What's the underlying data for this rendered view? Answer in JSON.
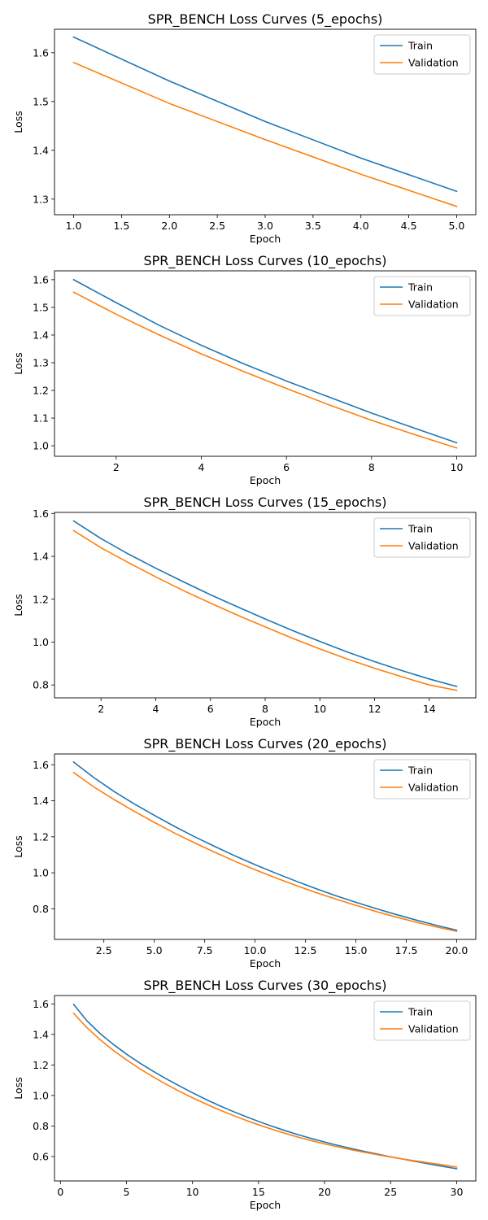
{
  "colors": {
    "train": "#1f77b4",
    "validation": "#ff7f0e"
  },
  "chart_data": [
    {
      "type": "line",
      "title": "SPR_BENCH Loss Curves (5_epochs)",
      "xlabel": "Epoch",
      "ylabel": "Loss",
      "xlim": [
        0.8,
        5.2
      ],
      "ylim": [
        1.268,
        1.648
      ],
      "xticks": [
        1.0,
        1.5,
        2.0,
        2.5,
        3.0,
        3.5,
        4.0,
        4.5,
        5.0
      ],
      "xtick_labels": [
        "1.0",
        "1.5",
        "2.0",
        "2.5",
        "3.0",
        "3.5",
        "4.0",
        "4.5",
        "5.0"
      ],
      "yticks": [
        1.3,
        1.4,
        1.5,
        1.6
      ],
      "ytick_labels": [
        "1.3",
        "1.4",
        "1.5",
        "1.6"
      ],
      "legend": "top-right",
      "x": [
        1,
        2,
        3,
        4,
        5
      ],
      "series": [
        {
          "name": "Train",
          "values": [
            1.632,
            1.542,
            1.459,
            1.384,
            1.316
          ]
        },
        {
          "name": "Validation",
          "values": [
            1.58,
            1.496,
            1.422,
            1.351,
            1.285
          ]
        }
      ]
    },
    {
      "type": "line",
      "title": "SPR_BENCH Loss Curves (10_epochs)",
      "xlabel": "Epoch",
      "ylabel": "Loss",
      "xlim": [
        0.55,
        10.45
      ],
      "ylim": [
        0.962,
        1.632
      ],
      "xticks": [
        2,
        4,
        6,
        8,
        10
      ],
      "xtick_labels": [
        "2",
        "4",
        "6",
        "8",
        "10"
      ],
      "yticks": [
        1.0,
        1.1,
        1.2,
        1.3,
        1.4,
        1.5,
        1.6
      ],
      "ytick_labels": [
        "1.0",
        "1.1",
        "1.2",
        "1.3",
        "1.4",
        "1.5",
        "1.6"
      ],
      "legend": "top-right",
      "x": [
        1,
        2,
        3,
        4,
        5,
        6,
        7,
        8,
        9,
        10
      ],
      "series": [
        {
          "name": "Train",
          "values": [
            1.6,
            1.517,
            1.436,
            1.363,
            1.296,
            1.234,
            1.176,
            1.118,
            1.064,
            1.011
          ]
        },
        {
          "name": "Validation",
          "values": [
            1.555,
            1.475,
            1.401,
            1.332,
            1.268,
            1.207,
            1.148,
            1.092,
            1.041,
            0.992
          ]
        }
      ]
    },
    {
      "type": "line",
      "title": "SPR_BENCH Loss Curves (15_epochs)",
      "xlabel": "Epoch",
      "ylabel": "Loss",
      "xlim": [
        0.3,
        15.7
      ],
      "ylim": [
        0.74,
        1.605
      ],
      "xticks": [
        2,
        4,
        6,
        8,
        10,
        12,
        14
      ],
      "xtick_labels": [
        "2",
        "4",
        "6",
        "8",
        "10",
        "12",
        "14"
      ],
      "yticks": [
        0.8,
        1.0,
        1.2,
        1.4,
        1.6
      ],
      "ytick_labels": [
        "0.8",
        "1.0",
        "1.2",
        "1.4",
        "1.6"
      ],
      "legend": "top-right",
      "x": [
        1,
        2,
        3,
        4,
        5,
        6,
        7,
        8,
        9,
        10,
        11,
        12,
        13,
        14,
        15
      ],
      "series": [
        {
          "name": "Train",
          "values": [
            1.565,
            1.483,
            1.411,
            1.345,
            1.282,
            1.221,
            1.164,
            1.108,
            1.054,
            1.003,
            0.954,
            0.909,
            0.867,
            0.828,
            0.793
          ]
        },
        {
          "name": "Validation",
          "values": [
            1.52,
            1.44,
            1.371,
            1.304,
            1.241,
            1.182,
            1.125,
            1.071,
            1.018,
            0.968,
            0.921,
            0.878,
            0.838,
            0.8,
            0.775
          ]
        }
      ]
    },
    {
      "type": "line",
      "title": "SPR_BENCH Loss Curves (20_epochs)",
      "xlabel": "Epoch",
      "ylabel": "Loss",
      "xlim": [
        0.05,
        20.95
      ],
      "ylim": [
        0.63,
        1.66
      ],
      "xticks": [
        2.5,
        5.0,
        7.5,
        10.0,
        12.5,
        15.0,
        17.5,
        20.0
      ],
      "xtick_labels": [
        "2.5",
        "5.0",
        "7.5",
        "10.0",
        "12.5",
        "15.0",
        "17.5",
        "20.0"
      ],
      "yticks": [
        0.8,
        1.0,
        1.2,
        1.4,
        1.6
      ],
      "ytick_labels": [
        "0.8",
        "1.0",
        "1.2",
        "1.4",
        "1.6"
      ],
      "legend": "top-right",
      "x": [
        1,
        2,
        3,
        4,
        5,
        6,
        7,
        8,
        9,
        10,
        11,
        12,
        13,
        14,
        15,
        16,
        17,
        18,
        19,
        20
      ],
      "series": [
        {
          "name": "Train",
          "values": [
            1.615,
            1.529,
            1.452,
            1.383,
            1.319,
            1.258,
            1.2,
            1.146,
            1.094,
            1.045,
            0.999,
            0.955,
            0.913,
            0.873,
            0.836,
            0.801,
            0.768,
            0.737,
            0.708,
            0.681
          ]
        },
        {
          "name": "Validation",
          "values": [
            1.557,
            1.477,
            1.407,
            1.342,
            1.28,
            1.221,
            1.166,
            1.114,
            1.064,
            1.017,
            0.973,
            0.931,
            0.891,
            0.854,
            0.819,
            0.785,
            0.754,
            0.725,
            0.699,
            0.675
          ]
        }
      ]
    },
    {
      "type": "line",
      "title": "SPR_BENCH Loss Curves (30_epochs)",
      "xlabel": "Epoch",
      "ylabel": "Loss",
      "xlim": [
        -0.45,
        31.45
      ],
      "ylim": [
        0.44,
        1.655
      ],
      "xticks": [
        0,
        5,
        10,
        15,
        20,
        25,
        30
      ],
      "xtick_labels": [
        "0",
        "5",
        "10",
        "15",
        "20",
        "25",
        "30"
      ],
      "yticks": [
        0.6,
        0.8,
        1.0,
        1.2,
        1.4,
        1.6
      ],
      "ytick_labels": [
        "0.6",
        "0.8",
        "1.0",
        "1.2",
        "1.4",
        "1.6"
      ],
      "legend": "top-right",
      "x": [
        1,
        2,
        3,
        4,
        5,
        6,
        7,
        8,
        9,
        10,
        11,
        12,
        13,
        14,
        15,
        16,
        17,
        18,
        19,
        20,
        21,
        22,
        23,
        24,
        25,
        26,
        27,
        28,
        29,
        30
      ],
      "series": [
        {
          "name": "Train",
          "values": [
            1.597,
            1.49,
            1.406,
            1.335,
            1.271,
            1.213,
            1.16,
            1.11,
            1.063,
            1.018,
            0.975,
            0.935,
            0.898,
            0.863,
            0.83,
            0.799,
            0.77,
            0.743,
            0.718,
            0.695,
            0.673,
            0.653,
            0.634,
            0.616,
            0.598,
            0.582,
            0.566,
            0.55,
            0.535,
            0.52
          ]
        },
        {
          "name": "Validation",
          "values": [
            1.538,
            1.445,
            1.366,
            1.296,
            1.233,
            1.176,
            1.123,
            1.074,
            1.028,
            0.985,
            0.945,
            0.907,
            0.872,
            0.839,
            0.808,
            0.779,
            0.752,
            0.727,
            0.704,
            0.683,
            0.663,
            0.645,
            0.628,
            0.612,
            0.597,
            0.583,
            0.57,
            0.557,
            0.545,
            0.531
          ]
        }
      ]
    }
  ]
}
